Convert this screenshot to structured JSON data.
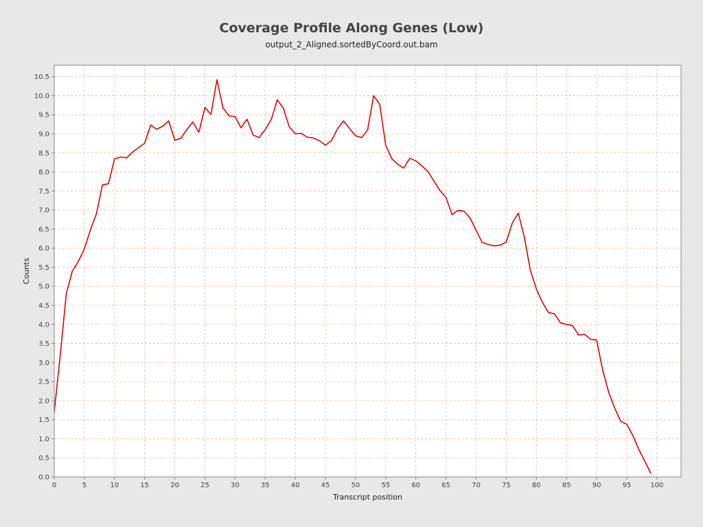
{
  "chart_data": {
    "type": "line",
    "title": "Coverage Profile Along Genes (Low)",
    "subtitle": "output_2_Aligned.sortedByCoord.out.bam",
    "xlabel": "Transcript position",
    "ylabel": "Counts",
    "xlim": [
      0,
      104
    ],
    "ylim": [
      0,
      10.8
    ],
    "x_ticks": [
      0,
      5,
      10,
      15,
      20,
      25,
      30,
      35,
      40,
      45,
      50,
      55,
      60,
      65,
      70,
      75,
      80,
      85,
      90,
      95,
      100
    ],
    "y_ticks": [
      0.0,
      0.5,
      1.0,
      1.5,
      2.0,
      2.5,
      3.0,
      3.5,
      4.0,
      4.5,
      5.0,
      5.5,
      6.0,
      6.5,
      7.0,
      7.5,
      8.0,
      8.5,
      9.0,
      9.5,
      10.0,
      10.5
    ],
    "grid": true,
    "colors": {
      "line": "#dd0000",
      "grid": "#f0b48a",
      "plot_bg": "#ffffff",
      "page_bg": "#e8e8e8"
    },
    "series": [
      {
        "x": [
          0,
          1,
          2,
          3,
          4,
          5,
          6,
          7,
          8,
          9,
          10,
          11,
          12,
          13,
          14,
          15,
          16,
          17,
          18,
          19,
          20,
          21,
          22,
          23,
          24,
          25,
          26,
          27,
          28,
          29,
          30,
          31,
          32,
          33,
          34,
          35,
          36,
          37,
          38,
          39,
          40,
          41,
          42,
          43,
          44,
          45,
          46,
          47,
          48,
          49,
          50,
          51,
          52,
          53,
          54,
          55,
          56,
          57,
          58,
          59,
          60,
          61,
          62,
          63,
          64,
          65,
          66,
          67,
          68,
          69,
          70,
          71,
          72,
          73,
          74,
          75,
          76,
          77,
          78,
          79,
          80,
          81,
          82,
          83,
          84,
          85,
          86,
          87,
          88,
          89,
          90,
          91,
          92,
          93,
          94,
          95,
          96,
          97,
          98,
          99
        ],
        "values": [
          1.7,
          3.2,
          4.8,
          5.4,
          5.65,
          5.98,
          6.48,
          6.9,
          7.66,
          7.69,
          8.34,
          8.39,
          8.37,
          8.52,
          8.64,
          8.75,
          9.23,
          9.12,
          9.2,
          9.34,
          8.83,
          8.88,
          9.11,
          9.31,
          9.04,
          9.69,
          9.51,
          10.42,
          9.68,
          9.47,
          9.45,
          9.16,
          9.38,
          8.97,
          8.9,
          9.11,
          9.37,
          9.89,
          9.68,
          9.18,
          9.0,
          9.01,
          8.91,
          8.89,
          8.82,
          8.7,
          8.82,
          9.13,
          9.34,
          9.14,
          8.95,
          8.9,
          9.1,
          10.0,
          9.78,
          8.7,
          8.35,
          8.2,
          8.1,
          8.36,
          8.29,
          8.16,
          8.01,
          7.76,
          7.51,
          7.33,
          6.88,
          6.99,
          6.97,
          6.79,
          6.47,
          6.15,
          6.1,
          6.06,
          6.08,
          6.16,
          6.66,
          6.92,
          6.29,
          5.42,
          4.93,
          4.58,
          4.31,
          4.28,
          4.04,
          4.0,
          3.97,
          3.72,
          3.74,
          3.61,
          3.59,
          2.8,
          2.22,
          1.8,
          1.46,
          1.38,
          1.09,
          0.72,
          0.41,
          0.09
        ]
      }
    ]
  }
}
